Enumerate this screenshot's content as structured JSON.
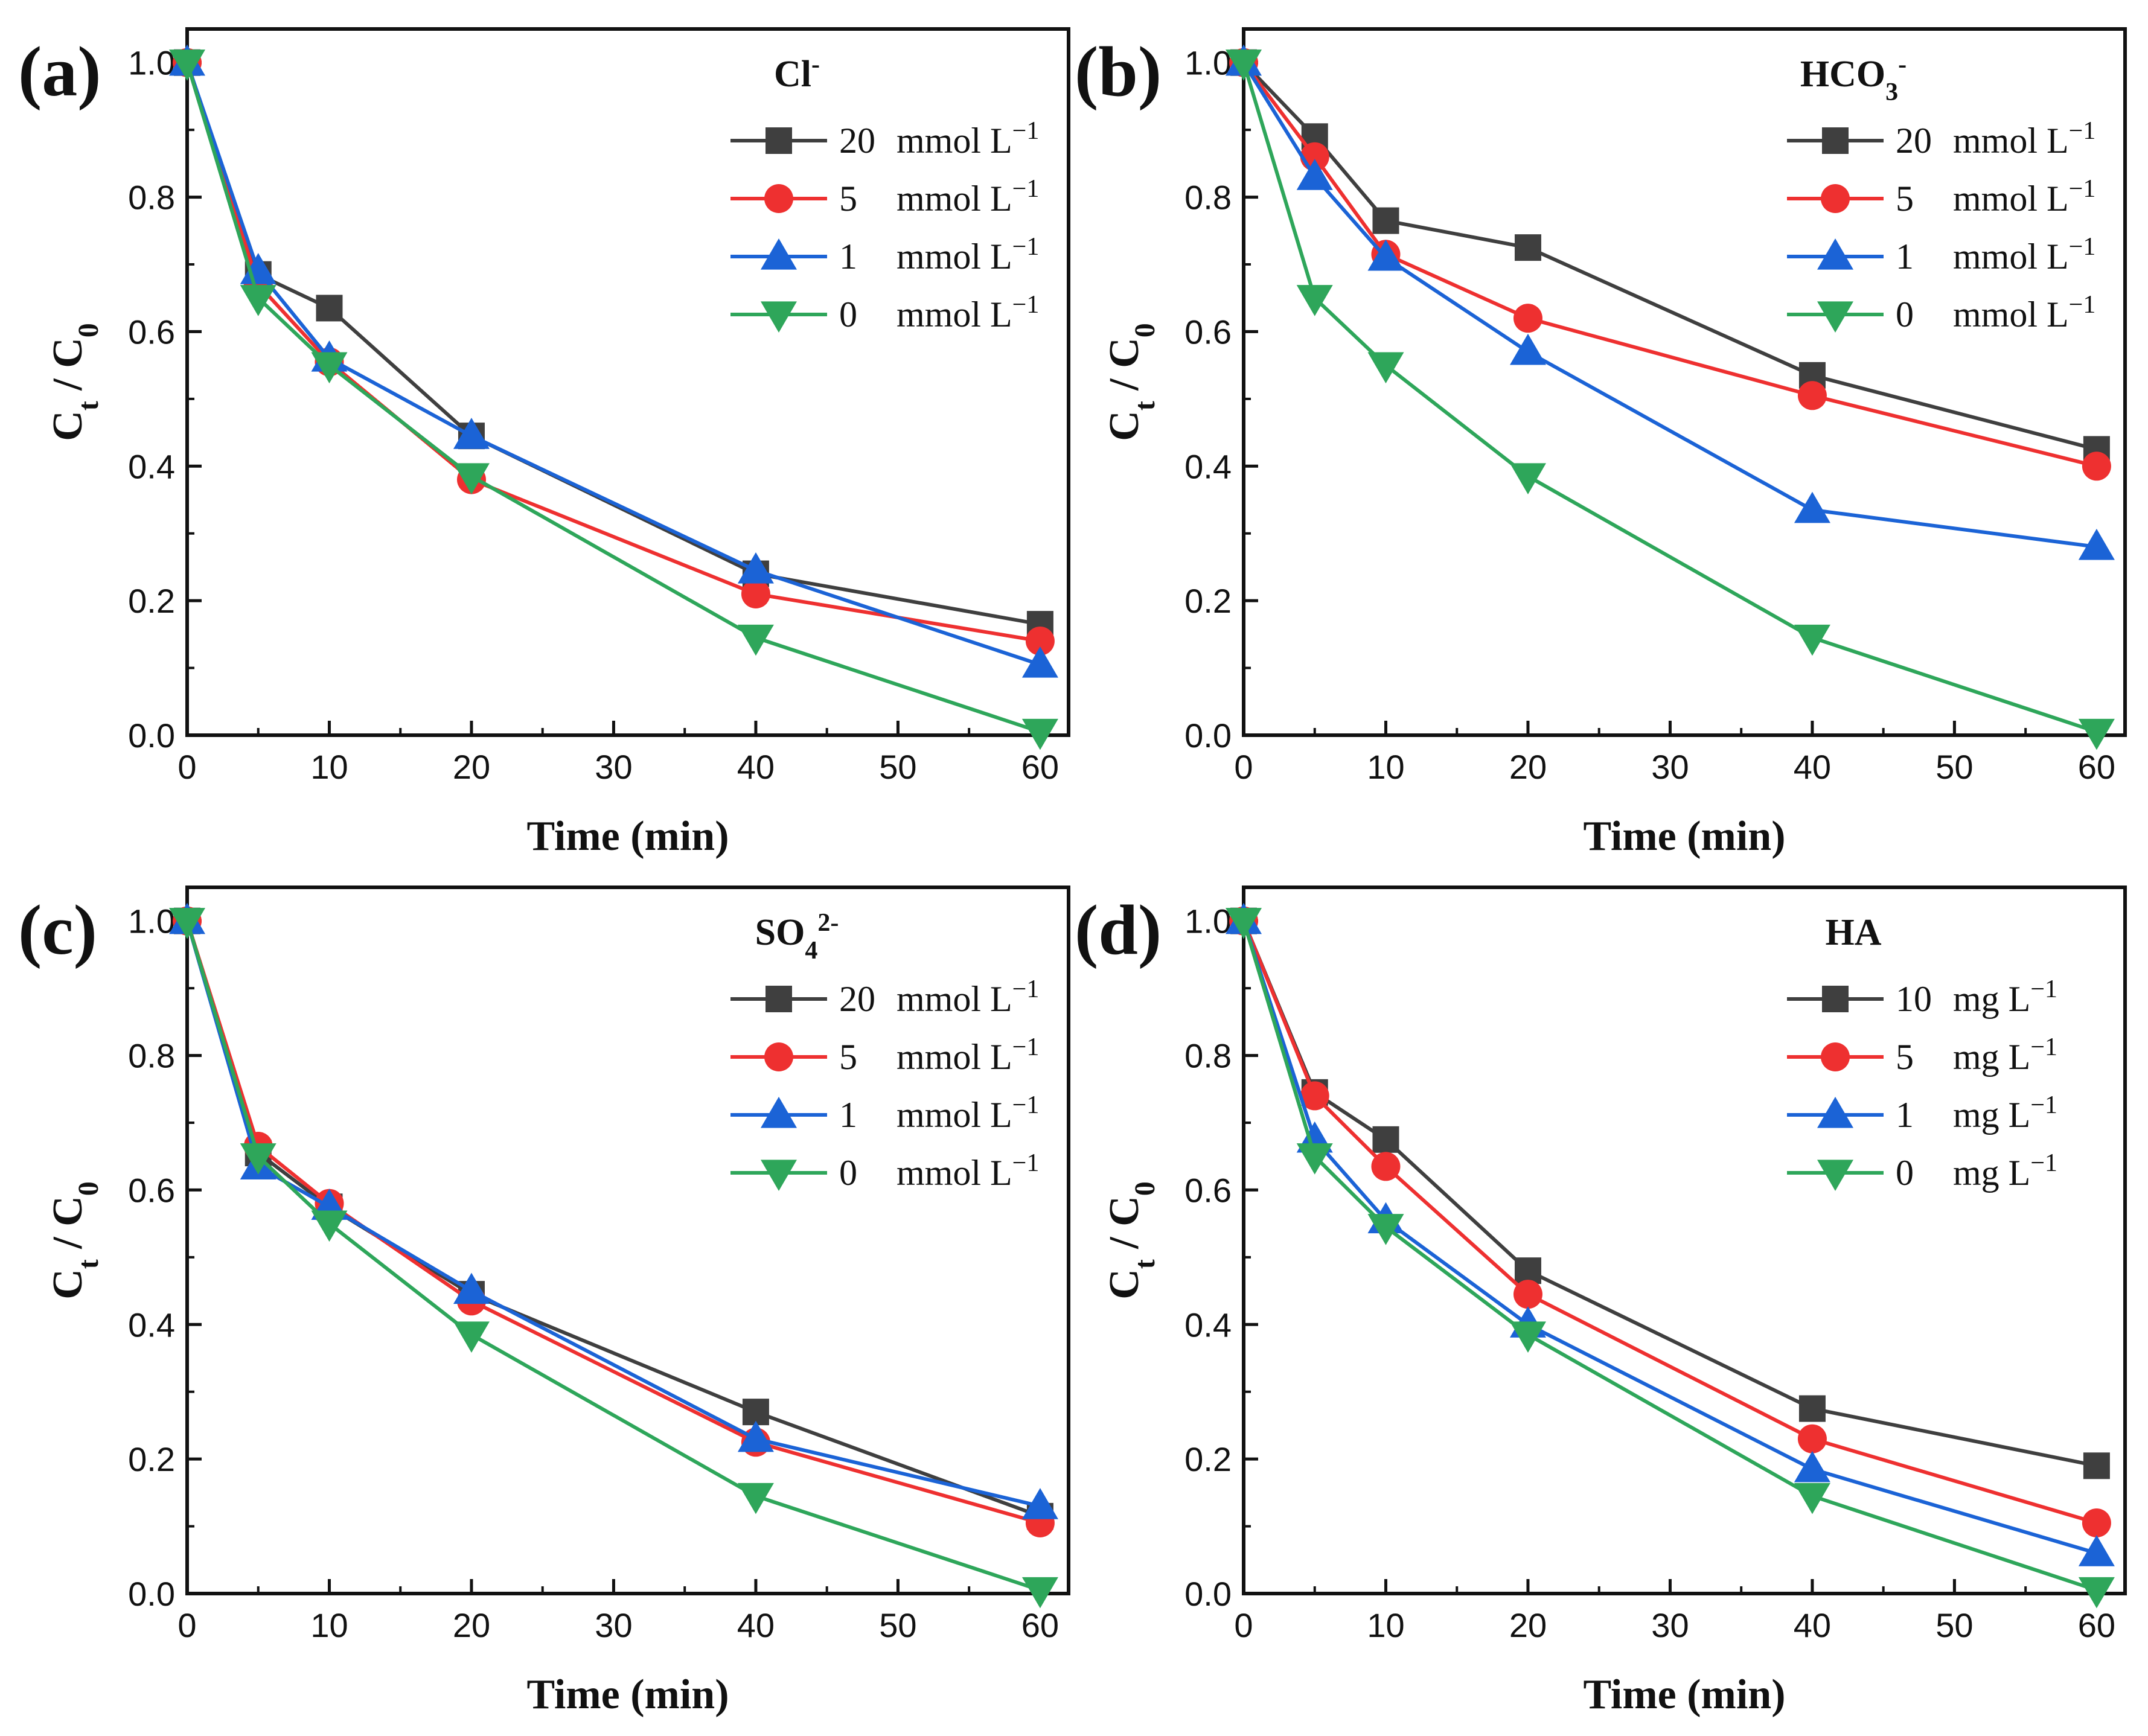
{
  "chart_data": [
    {
      "type": "line",
      "panel_label": "(a)",
      "legend_title": "Cl-",
      "legend_title_parts": [
        {
          "t": "Cl",
          "s": "n"
        },
        {
          "t": "-",
          "s": "sup"
        }
      ],
      "xlabel": "Time (min)",
      "ylabel": "Ct / C0",
      "ylabel_parts": [
        {
          "t": "C",
          "s": "n"
        },
        {
          "t": "t",
          "s": "sub"
        },
        {
          "t": " / C",
          "s": "n"
        },
        {
          "t": "0",
          "s": "sub"
        }
      ],
      "xlim": [
        0,
        62
      ],
      "ylim": [
        0,
        1.05
      ],
      "xticks": [
        "0",
        "10",
        "20",
        "30",
        "40",
        "50",
        "60"
      ],
      "yticks": [
        "0.0",
        "0.2",
        "0.4",
        "0.6",
        "0.8",
        "1.0"
      ],
      "legend_placement": "top-right",
      "x": [
        0,
        5,
        10,
        20,
        40,
        60
      ],
      "series": [
        {
          "name": "20 mmol L−1",
          "num": "20",
          "unit": "mmol L",
          "sup": "−1",
          "color": "#3f3f3f",
          "marker": "square",
          "values": [
            1.0,
            0.685,
            0.635,
            0.445,
            0.24,
            0.165
          ]
        },
        {
          "name": "5 mmol L−1",
          "num": "5",
          "unit": "mmol L",
          "sup": "−1",
          "color": "#ee3030",
          "marker": "circle",
          "values": [
            1.0,
            0.67,
            0.555,
            0.38,
            0.21,
            0.14
          ]
        },
        {
          "name": "1 mmol L−1",
          "num": "1",
          "unit": "mmol L",
          "sup": "−1",
          "color": "#1b63d6",
          "marker": "triangle-up",
          "values": [
            1.0,
            0.69,
            0.56,
            0.445,
            0.245,
            0.105
          ]
        },
        {
          "name": "0 mmol L−1",
          "num": "0",
          "unit": "mmol L",
          "sup": "−1",
          "color": "#2ea65a",
          "marker": "triangle-down",
          "values": [
            1.0,
            0.65,
            0.55,
            0.385,
            0.145,
            0.005
          ]
        }
      ]
    },
    {
      "type": "line",
      "panel_label": "(b)",
      "legend_title": "HCO3-",
      "legend_title_parts": [
        {
          "t": "HCO",
          "s": "n"
        },
        {
          "t": "3",
          "s": "sub"
        },
        {
          "t": "-",
          "s": "sup"
        }
      ],
      "xlabel": "Time (min)",
      "ylabel": "Ct / C0",
      "ylabel_parts": [
        {
          "t": "C",
          "s": "n"
        },
        {
          "t": "t",
          "s": "sub"
        },
        {
          "t": " / C",
          "s": "n"
        },
        {
          "t": "0",
          "s": "sub"
        }
      ],
      "xlim": [
        0,
        62
      ],
      "ylim": [
        0,
        1.05
      ],
      "xticks": [
        "0",
        "10",
        "20",
        "30",
        "40",
        "50",
        "60"
      ],
      "yticks": [
        "0.0",
        "0.2",
        "0.4",
        "0.6",
        "0.8",
        "1.0"
      ],
      "legend_placement": "top-right",
      "x": [
        0,
        5,
        10,
        20,
        40,
        60
      ],
      "series": [
        {
          "name": "20 mmol L−1",
          "num": "20",
          "unit": "mmol L",
          "sup": "−1",
          "color": "#3f3f3f",
          "marker": "square",
          "values": [
            1.0,
            0.89,
            0.765,
            0.725,
            0.535,
            0.425
          ]
        },
        {
          "name": "5 mmol L−1",
          "num": "5",
          "unit": "mmol L",
          "sup": "−1",
          "color": "#ee3030",
          "marker": "circle",
          "values": [
            1.0,
            0.86,
            0.715,
            0.62,
            0.505,
            0.4
          ]
        },
        {
          "name": "1 mmol L−1",
          "num": "1",
          "unit": "mmol L",
          "sup": "−1",
          "color": "#1b63d6",
          "marker": "triangle-up",
          "values": [
            1.0,
            0.83,
            0.71,
            0.57,
            0.335,
            0.28
          ]
        },
        {
          "name": "0 mmol L−1",
          "num": "0",
          "unit": "mmol L",
          "sup": "−1",
          "color": "#2ea65a",
          "marker": "triangle-down",
          "values": [
            1.0,
            0.65,
            0.55,
            0.385,
            0.145,
            0.005
          ]
        }
      ]
    },
    {
      "type": "line",
      "panel_label": "(c)",
      "legend_title": "SO42-",
      "legend_title_parts": [
        {
          "t": "SO",
          "s": "n"
        },
        {
          "t": "4",
          "s": "sub"
        },
        {
          "t": "2-",
          "s": "sup"
        }
      ],
      "xlabel": "Time (min)",
      "ylabel": "Ct / C0",
      "ylabel_parts": [
        {
          "t": "C",
          "s": "n"
        },
        {
          "t": "t",
          "s": "sub"
        },
        {
          "t": " / C",
          "s": "n"
        },
        {
          "t": "0",
          "s": "sub"
        }
      ],
      "xlim": [
        0,
        62
      ],
      "ylim": [
        0,
        1.05
      ],
      "xticks": [
        "0",
        "10",
        "20",
        "30",
        "40",
        "50",
        "60"
      ],
      "yticks": [
        "0.0",
        "0.2",
        "0.4",
        "0.6",
        "0.8",
        "1.0"
      ],
      "legend_placement": "top-right",
      "x": [
        0,
        5,
        10,
        20,
        40,
        60
      ],
      "series": [
        {
          "name": "20 mmol L−1",
          "num": "20",
          "unit": "mmol L",
          "sup": "−1",
          "color": "#3f3f3f",
          "marker": "square",
          "values": [
            1.0,
            0.655,
            0.575,
            0.445,
            0.27,
            0.115
          ]
        },
        {
          "name": "5 mmol L−1",
          "num": "5",
          "unit": "mmol L",
          "sup": "−1",
          "color": "#ee3030",
          "marker": "circle",
          "values": [
            1.0,
            0.665,
            0.58,
            0.435,
            0.225,
            0.105
          ]
        },
        {
          "name": "1 mmol L−1",
          "num": "1",
          "unit": "mmol L",
          "sup": "−1",
          "color": "#1b63d6",
          "marker": "triangle-up",
          "values": [
            1.0,
            0.635,
            0.575,
            0.45,
            0.23,
            0.13
          ]
        },
        {
          "name": "0 mmol L−1",
          "num": "0",
          "unit": "mmol L",
          "sup": "−1",
          "color": "#2ea65a",
          "marker": "triangle-down",
          "values": [
            1.0,
            0.65,
            0.55,
            0.385,
            0.145,
            0.005
          ]
        }
      ]
    },
    {
      "type": "line",
      "panel_label": "(d)",
      "legend_title": "HA",
      "legend_title_parts": [
        {
          "t": "HA",
          "s": "n"
        }
      ],
      "xlabel": "Time (min)",
      "ylabel": "Ct / C0",
      "ylabel_parts": [
        {
          "t": "C",
          "s": "n"
        },
        {
          "t": "t",
          "s": "sub"
        },
        {
          "t": " / C",
          "s": "n"
        },
        {
          "t": "0",
          "s": "sub"
        }
      ],
      "xlim": [
        0,
        62
      ],
      "ylim": [
        0,
        1.05
      ],
      "xticks": [
        "0",
        "10",
        "20",
        "30",
        "40",
        "50",
        "60"
      ],
      "yticks": [
        "0.0",
        "0.2",
        "0.4",
        "0.6",
        "0.8",
        "1.0"
      ],
      "legend_placement": "top-right",
      "x": [
        0,
        5,
        10,
        20,
        40,
        60
      ],
      "series": [
        {
          "name": "10 mg L−1",
          "num": "10",
          "unit": "mg L",
          "sup": "−1",
          "color": "#3f3f3f",
          "marker": "square",
          "values": [
            1.0,
            0.745,
            0.675,
            0.48,
            0.275,
            0.19
          ]
        },
        {
          "name": "5 mg L−1",
          "num": "5",
          "unit": "mg L",
          "sup": "−1",
          "color": "#ee3030",
          "marker": "circle",
          "values": [
            1.0,
            0.74,
            0.635,
            0.445,
            0.23,
            0.105
          ]
        },
        {
          "name": "1 mg L−1",
          "num": "1",
          "unit": "mg L",
          "sup": "−1",
          "color": "#1b63d6",
          "marker": "triangle-up",
          "values": [
            1.0,
            0.675,
            0.555,
            0.4,
            0.185,
            0.06
          ]
        },
        {
          "name": "0 mg L−1",
          "num": "0",
          "unit": "mg L",
          "sup": "−1",
          "color": "#2ea65a",
          "marker": "triangle-down",
          "values": [
            1.0,
            0.65,
            0.545,
            0.385,
            0.145,
            0.005
          ]
        }
      ]
    }
  ]
}
